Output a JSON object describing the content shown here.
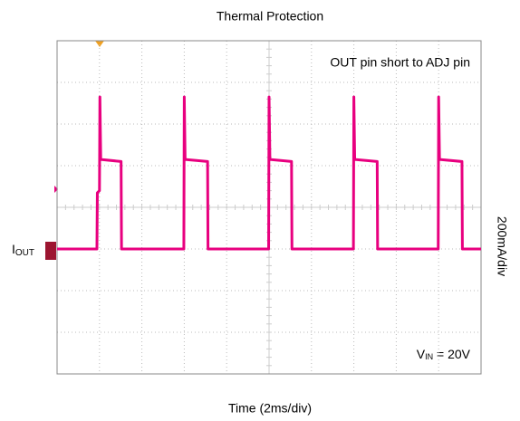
{
  "chart_data": {
    "type": "line",
    "title": "Thermal Protection",
    "x_label": "Time (2ms/div)",
    "y_label": "200mA/div",
    "annotations": [
      "OUT pin short to ADJ pin"
    ],
    "condition": {
      "symbol": "V",
      "subscript": "IN",
      "text": " = 20V"
    },
    "xlim": [
      0,
      20
    ],
    "ylim": [
      -600,
      1000
    ],
    "xticks": [
      0,
      2,
      4,
      6,
      8,
      10,
      12,
      14,
      16,
      18,
      20
    ],
    "yticks": [
      -600,
      -400,
      -200,
      0,
      200,
      400,
      600,
      800,
      1000
    ],
    "grid": true,
    "series": [
      {
        "name": "I",
        "name_subscript": "OUT",
        "color": "#e8007f",
        "x": [
          0,
          1.88,
          1.9,
          2.0,
          2.02,
          2.06,
          3.02,
          3.04,
          5.98,
          6.0,
          6.04,
          7.1,
          7.12,
          9.98,
          10.0,
          10.04,
          11.06,
          11.08,
          13.98,
          14.0,
          14.04,
          15.1,
          15.12,
          17.98,
          18.0,
          18.04,
          19.1,
          19.12,
          20
        ],
        "values": [
          0,
          0,
          270,
          280,
          730,
          430,
          420,
          0,
          0,
          730,
          430,
          420,
          0,
          0,
          730,
          430,
          420,
          0,
          0,
          730,
          430,
          420,
          0,
          0,
          730,
          430,
          420,
          0,
          0
        ]
      }
    ]
  }
}
